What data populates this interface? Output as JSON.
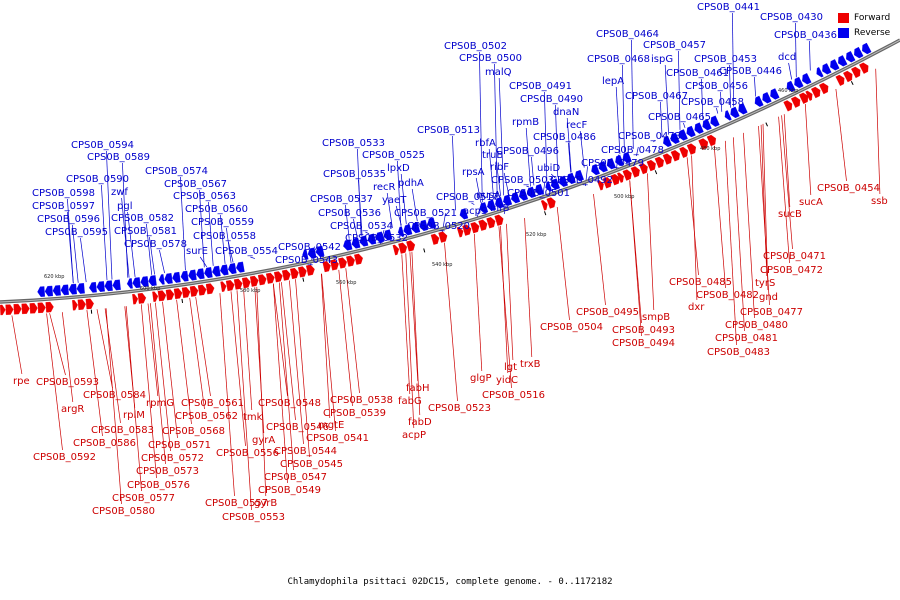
{
  "caption": "Chlamydophila psittaci 02DC15, complete genome. - 0..1172182",
  "legend": [
    {
      "label": "Forward",
      "color": "#ee0000"
    },
    {
      "label": "Reverse",
      "color": "#0000ee"
    }
  ],
  "ticks": [
    "620 kbp",
    "600 kbp",
    "580 kbp",
    "560 kbp",
    "540 kbp",
    "520 kbp",
    "500 kbp",
    "480 kbp",
    "460 kbp"
  ],
  "reverse_labels": [
    "CPS0B_0441",
    "CPS0B_0430",
    "CPS0B_0436",
    "dcd",
    "CPS0B_0446",
    "CPS0B_0453",
    "CPS0B_0457",
    "CPS0B_0464",
    "ispG",
    "CPS0B_0468",
    "CPS0B_0461",
    "CPS0B_0456",
    "CPS0B_0458",
    "lepA",
    "CPS0B_0467",
    "CPS0B_0465",
    "CPS0B_0473",
    "CPS0B_0478",
    "CPS0B_0479",
    "CPS0B_0502",
    "CPS0B_0500",
    "malQ",
    "CPS0B_0491",
    "CPS0B_0490",
    "dnaN",
    "recF",
    "rpmB",
    "CPS0B_0486",
    "CPS0B_0496",
    "ubiD",
    "CPS0B_0492",
    "CPS0B_0501",
    "CPS0B_0503",
    "CPS0B_0513",
    "rbfA",
    "truB",
    "ribF",
    "rpsA",
    "nusA",
    "acpS",
    "infB",
    "CPS0B_0517",
    "CPS0B_0533",
    "CPS0B_0525",
    "lpxD",
    "pdhA",
    "recR",
    "yaeT",
    "CPS0B_0535",
    "CPS0B_0537",
    "CPS0B_0536",
    "CPS0B_0521",
    "CPS0B_0534",
    "CPS0B_0520",
    "CPS0B_0532",
    "CPS0B_0542",
    "CPS0B_0543",
    "CPS0B_0594",
    "CPS0B_0589",
    "CPS0B_0590",
    "zwf",
    "CPS0B_0598",
    "CPS0B_0597",
    "pgl",
    "CPS0B_0596",
    "CPS0B_0582",
    "CPS0B_0595",
    "CPS0B_0581",
    "CPS0B_0578",
    "CPS0B_0574",
    "CPS0B_0567",
    "CPS0B_0563",
    "CPS0B_0560",
    "CPS0B_0559",
    "CPS0B_0558",
    "surE",
    "CPS0B_0554"
  ],
  "forward_labels": [
    "CPS0B_0454",
    "ssb",
    "sucA",
    "sucB",
    "CPS0B_0471",
    "CPS0B_0472",
    "tyrS",
    "gnd",
    "CPS0B_0477",
    "CPS0B_0480",
    "CPS0B_0481",
    "CPS0B_0483",
    "CPS0B_0485",
    "CPS0B_0482",
    "dxr",
    "smpB",
    "CPS0B_0495",
    "CPS0B_0493",
    "CPS0B_0494",
    "CPS0B_0504",
    "trxB",
    "lgt",
    "yidC",
    "CPS0B_0516",
    "glgP",
    "CPS0B_0523",
    "fabH",
    "fabG",
    "fabD",
    "acpP",
    "CPS0B_0538",
    "CPS0B_0539",
    "mgtE",
    "CPS0B_0541",
    "CPS0B_0548",
    "CPS0B_0546",
    "CPS0B_0544",
    "CPS0B_0545",
    "CPS0B_0547",
    "CPS0B_0549",
    "gyrB",
    "CPS0B_0553",
    "tmk",
    "gyrA",
    "CPS0B_0556",
    "CPS0B_0557",
    "CPS0B_0561",
    "CPS0B_0562",
    "CPS0B_0568",
    "CPS0B_0571",
    "CPS0B_0572",
    "CPS0B_0573",
    "rpmG",
    "CPS0B_0576",
    "CPS0B_0577",
    "CPS0B_0580",
    "rplM",
    "CPS0B_0583",
    "CPS0B_0584",
    "CPS0B_0586",
    "CPS0B_0593",
    "argR",
    "CPS0B_0592",
    "rpe"
  ]
}
